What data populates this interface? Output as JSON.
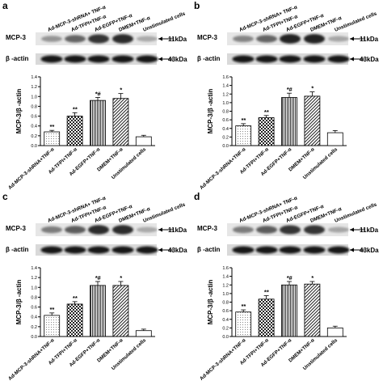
{
  "figure": {
    "lane_labels": [
      "Ad-MCP-3-shRNA+ TNF-α",
      "Ad-TFPI+TNF-α",
      "Ad-EGFP+TNF-α",
      "DMEM+TNF-α",
      "Unstimulated cells"
    ],
    "band_mcp3_label": "MCP-3",
    "band_actin_label": "β -actin",
    "kda_mcp3": "11kDa",
    "kda_actin": "43kDa",
    "ylabel": "MCP-3/β -actin",
    "colors": {
      "band": "#1e1e1e",
      "blot_bg": "#e6e6e6",
      "axis": "#000000"
    }
  },
  "chart_data": [
    {
      "panel": "a",
      "type": "bar",
      "categories": [
        "Ad-MCP-3-shRNA+TNF-α",
        "Ad-TFPI+TNF-α",
        "Ad-EGFP+TNF-α",
        "DMEM+TNF-α",
        "Unstimulated cells"
      ],
      "values": [
        0.28,
        0.6,
        0.92,
        0.96,
        0.18
      ],
      "errors": [
        0.03,
        0.07,
        0.06,
        0.1,
        0.03
      ],
      "annotations": [
        "**",
        "**",
        "*#",
        "*",
        ""
      ],
      "ylim": [
        0,
        1.4
      ],
      "yticks": [
        "0.0",
        "0.2",
        "0.4",
        "0.6",
        "0.8",
        "1.0",
        "1.2",
        "1.4"
      ],
      "ylabel": "MCP-3/β -actin",
      "xlabel": "",
      "title": "",
      "band_intensity": [
        0.25,
        0.55,
        0.85,
        0.9,
        0.12
      ]
    },
    {
      "panel": "b",
      "type": "bar",
      "categories": [
        "Ad-MCP-3-shRNA+TNF-α",
        "Ad-TFPI+TNF-α",
        "Ad-EGFP+TNF-α",
        "DMEM+TNF-α",
        "Unstimulated cells"
      ],
      "values": [
        0.46,
        0.65,
        1.12,
        1.15,
        0.3
      ],
      "errors": [
        0.05,
        0.05,
        0.1,
        0.1,
        0.05
      ],
      "annotations": [
        "**",
        "**",
        "*#",
        "*",
        ""
      ],
      "ylim": [
        0,
        1.6
      ],
      "yticks": [
        "0.0",
        "0.2",
        "0.4",
        "0.6",
        "0.8",
        "1.0",
        "1.2",
        "1.4",
        "1.6"
      ],
      "ylabel": "MCP-3/β -actin",
      "xlabel": "",
      "title": "",
      "band_intensity": [
        0.35,
        0.55,
        0.95,
        0.95,
        0.15
      ]
    },
    {
      "panel": "c",
      "type": "bar",
      "categories": [
        "Ad-MCP-3-shRNA+TNF-α",
        "Ad-TFPI+TNF-α",
        "Ad-EGFP+TNF-α",
        "DMEM+TNF-α",
        "Unstimulated cells"
      ],
      "values": [
        0.43,
        0.66,
        1.04,
        1.04,
        0.12
      ],
      "errors": [
        0.05,
        0.05,
        0.08,
        0.08,
        0.03
      ],
      "annotations": [
        "**",
        "**",
        "*#",
        "*",
        ""
      ],
      "ylim": [
        0,
        1.4
      ],
      "yticks": [
        "0.0",
        "0.2",
        "0.4",
        "0.6",
        "0.8",
        "1.0",
        "1.2",
        "1.4"
      ],
      "ylabel": "MCP-3/β -actin",
      "xlabel": "",
      "title": "",
      "band_intensity": [
        0.4,
        0.6,
        0.9,
        0.9,
        0.12
      ]
    },
    {
      "panel": "d",
      "type": "bar",
      "categories": [
        "Ad-MCP-3-shRNA+TNF-α",
        "Ad-TFPI+TNF-α",
        "Ad-EGFP+TNF-α",
        "DMEM+TNF-α",
        "Unstimulated cells"
      ],
      "values": [
        0.57,
        0.87,
        1.2,
        1.22,
        0.2
      ],
      "errors": [
        0.05,
        0.08,
        0.08,
        0.06,
        0.04
      ],
      "annotations": [
        "**",
        "**",
        "*#",
        "*",
        ""
      ],
      "ylim": [
        0,
        1.6
      ],
      "yticks": [
        "0.0",
        "0.2",
        "0.4",
        "0.6",
        "0.8",
        "1.0",
        "1.2",
        "1.4",
        "1.6"
      ],
      "ylabel": "MCP-3/β -actin",
      "xlabel": "",
      "title": "",
      "band_intensity": [
        0.4,
        0.6,
        0.85,
        0.85,
        0.15
      ]
    }
  ]
}
